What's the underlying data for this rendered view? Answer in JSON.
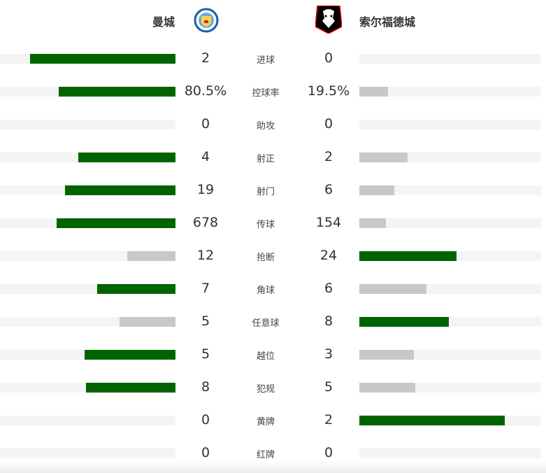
{
  "home": {
    "name": "曼城",
    "logo": "manchester-city-crest"
  },
  "away": {
    "name": "索尔福德城",
    "logo": "salford-city-lion-crest"
  },
  "colors": {
    "winner": "#006400",
    "loser": "#c8c8c8",
    "track": "#f4f4f4"
  },
  "stats": [
    {
      "label": "进球",
      "home": "2",
      "away": "0",
      "home_share": 1,
      "away_share": 0
    },
    {
      "label": "控球率",
      "home": "80.5%",
      "away": "19.5%",
      "home_share": 0.805,
      "away_share": 0.195
    },
    {
      "label": "助攻",
      "home": "0",
      "away": "0",
      "home_share": 0,
      "away_share": 0
    },
    {
      "label": "射正",
      "home": "4",
      "away": "2",
      "home_share": 0.667,
      "away_share": 0.333
    },
    {
      "label": "射门",
      "home": "19",
      "away": "6",
      "home_share": 0.76,
      "away_share": 0.24
    },
    {
      "label": "传球",
      "home": "678",
      "away": "154",
      "home_share": 0.815,
      "away_share": 0.185
    },
    {
      "label": "抢断",
      "home": "12",
      "away": "24",
      "home_share": 0.333,
      "away_share": 0.667
    },
    {
      "label": "角球",
      "home": "7",
      "away": "6",
      "home_share": 0.538,
      "away_share": 0.462
    },
    {
      "label": "任意球",
      "home": "5",
      "away": "8",
      "home_share": 0.385,
      "away_share": 0.615
    },
    {
      "label": "越位",
      "home": "5",
      "away": "3",
      "home_share": 0.625,
      "away_share": 0.375
    },
    {
      "label": "犯规",
      "home": "8",
      "away": "5",
      "home_share": 0.615,
      "away_share": 0.385
    },
    {
      "label": "黄牌",
      "home": "0",
      "away": "2",
      "home_share": 0,
      "away_share": 1
    },
    {
      "label": "红牌",
      "home": "0",
      "away": "0",
      "home_share": 0,
      "away_share": 0
    }
  ]
}
